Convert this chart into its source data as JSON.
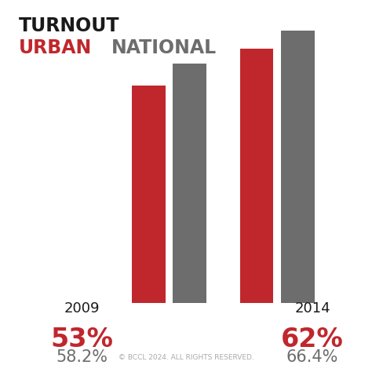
{
  "title_line1": "TURNOUT",
  "title_line2_urban": "URBAN",
  "title_line2_national": "NATIONAL",
  "years": [
    "2009",
    "2014"
  ],
  "urban_values": [
    53,
    62
  ],
  "national_values": [
    58.2,
    66.4
  ],
  "urban_labels": [
    "53%",
    "62%"
  ],
  "national_labels": [
    "58.2%",
    "66.4%"
  ],
  "urban_color": "#c0272d",
  "national_color": "#6d6d6d",
  "background_color": "#ffffff",
  "text_color_dark": "#1a1a1a",
  "ylim_max": 72,
  "bar_width": 0.38,
  "copyright_text": "© BCCL 2024. ALL RIGHTS RESERVED.",
  "title_fontsize": 17,
  "year_fontsize": 13,
  "pct_fontsize": 24,
  "national_label_fontsize": 15,
  "copyright_fontsize": 6.5
}
